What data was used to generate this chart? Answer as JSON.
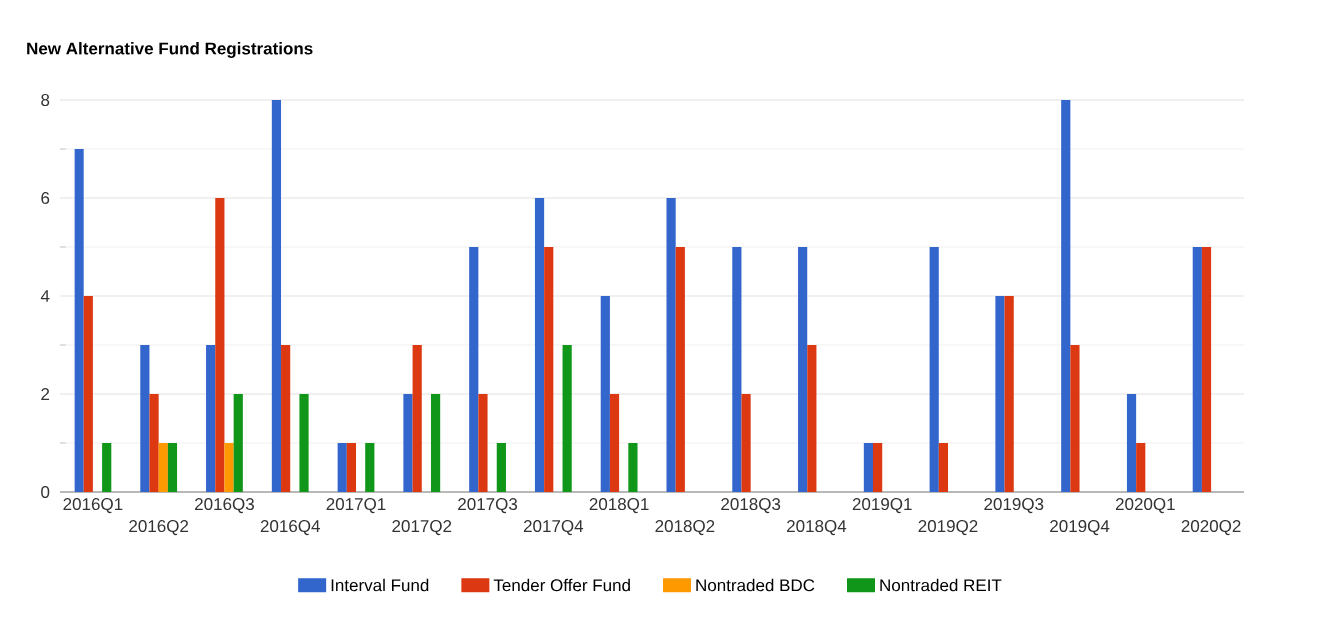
{
  "chart_data": {
    "type": "bar",
    "title": "New Alternative Fund Registrations",
    "categories": [
      "2016Q1",
      "2016Q2",
      "2016Q3",
      "2016Q4",
      "2017Q1",
      "2017Q2",
      "2017Q3",
      "2017Q4",
      "2018Q1",
      "2018Q2",
      "2018Q3",
      "2018Q4",
      "2019Q1",
      "2019Q2",
      "2019Q3",
      "2019Q4",
      "2020Q1",
      "2020Q2"
    ],
    "series": [
      {
        "name": "Interval Fund",
        "color": "#3366cc",
        "values": [
          7,
          3,
          3,
          8,
          1,
          2,
          5,
          6,
          4,
          6,
          5,
          5,
          1,
          5,
          4,
          8,
          2,
          5
        ]
      },
      {
        "name": "Tender Offer Fund",
        "color": "#dc3912",
        "values": [
          4,
          2,
          6,
          3,
          1,
          3,
          2,
          5,
          2,
          5,
          2,
          3,
          1,
          1,
          4,
          3,
          1,
          5
        ]
      },
      {
        "name": "Nontraded BDC",
        "color": "#ff9900",
        "values": [
          0,
          1,
          1,
          0,
          0,
          0,
          0,
          0,
          0,
          0,
          0,
          0,
          0,
          0,
          0,
          0,
          0,
          0
        ]
      },
      {
        "name": "Nontraded REIT",
        "color": "#109618",
        "values": [
          1,
          1,
          2,
          2,
          1,
          2,
          1,
          3,
          1,
          0,
          0,
          0,
          0,
          0,
          0,
          0,
          0,
          0
        ]
      }
    ],
    "ylim": [
      0,
      8
    ],
    "yticks": [
      0,
      2,
      4,
      6,
      8
    ],
    "grid": "y",
    "legend": "bottom"
  }
}
